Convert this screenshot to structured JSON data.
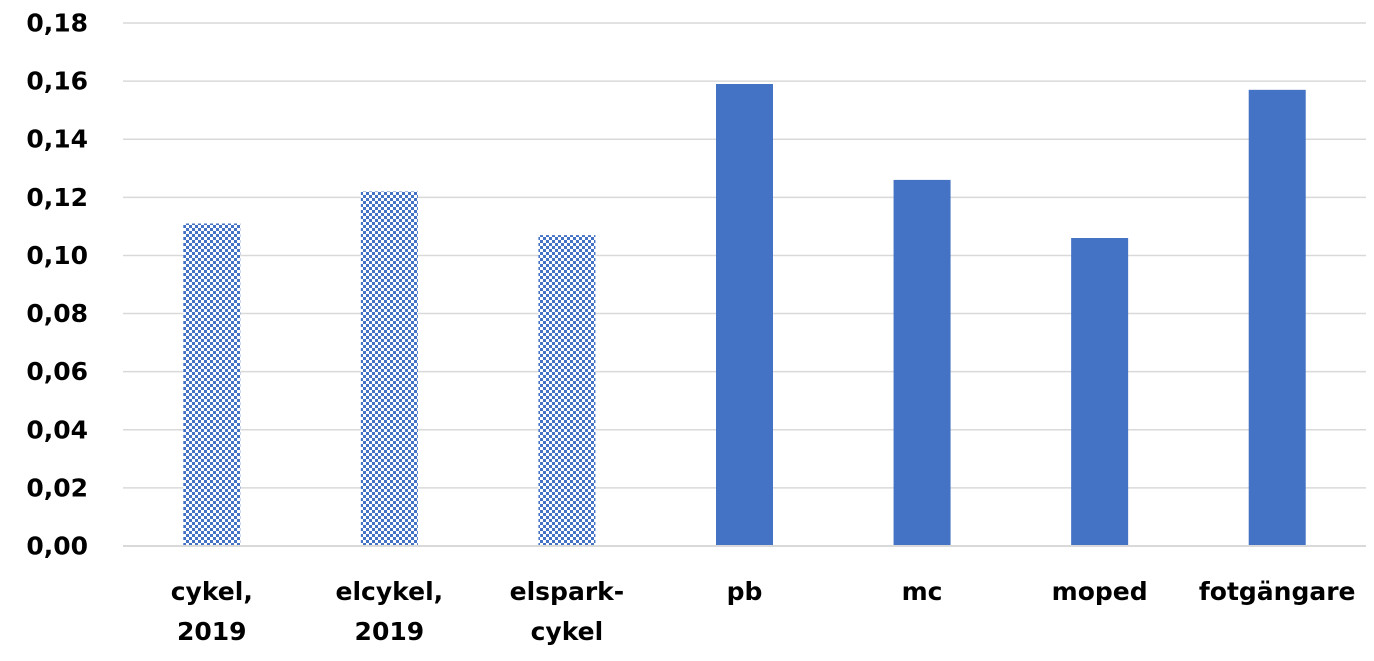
{
  "chart_data": {
    "type": "bar",
    "categories": [
      [
        "cykel,",
        "2019"
      ],
      [
        "elcykel,",
        "2019"
      ],
      [
        "elspark-",
        "cykel"
      ],
      [
        "pb"
      ],
      [
        "mc"
      ],
      [
        "moped"
      ],
      [
        "fotgängare"
      ]
    ],
    "values": [
      0.111,
      0.122,
      0.107,
      0.159,
      0.126,
      0.106,
      0.157
    ],
    "fill_style": [
      "checkered",
      "checkered",
      "checkered",
      "solid",
      "solid",
      "solid",
      "solid"
    ],
    "y_ticks": [
      "0,00",
      "0,02",
      "0,04",
      "0,06",
      "0,08",
      "0,10",
      "0,12",
      "0,14",
      "0,16",
      "0,18"
    ],
    "ylim": [
      0,
      0.18
    ],
    "grid": true,
    "legend": "none",
    "title": "",
    "xlabel": "",
    "ylabel": "",
    "colors": {
      "bar": "#4472c4",
      "pattern_light": "#ffffff",
      "grid": "#d9d9d9",
      "text": "#000000"
    }
  }
}
